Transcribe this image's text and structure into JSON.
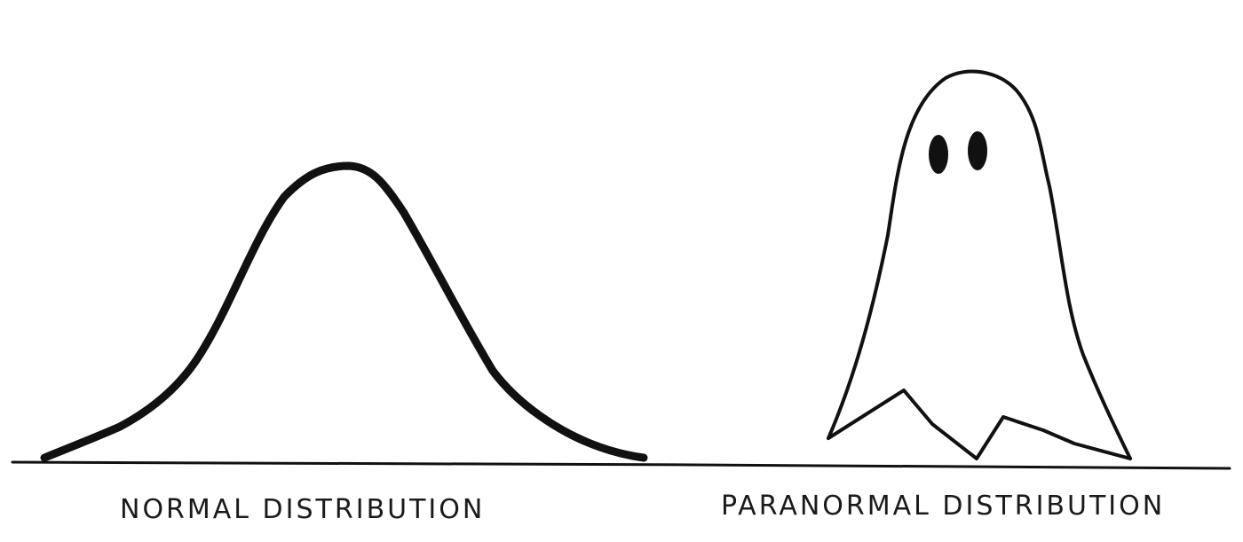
{
  "panels": {
    "left": {
      "caption": "NORMAL DISTRIBUTION",
      "figure": "bell-curve"
    },
    "right": {
      "caption": "PARANORMAL DISTRIBUTION",
      "figure": "ghost"
    }
  },
  "colors": {
    "background": "#ffffff",
    "ink": "#111111"
  }
}
